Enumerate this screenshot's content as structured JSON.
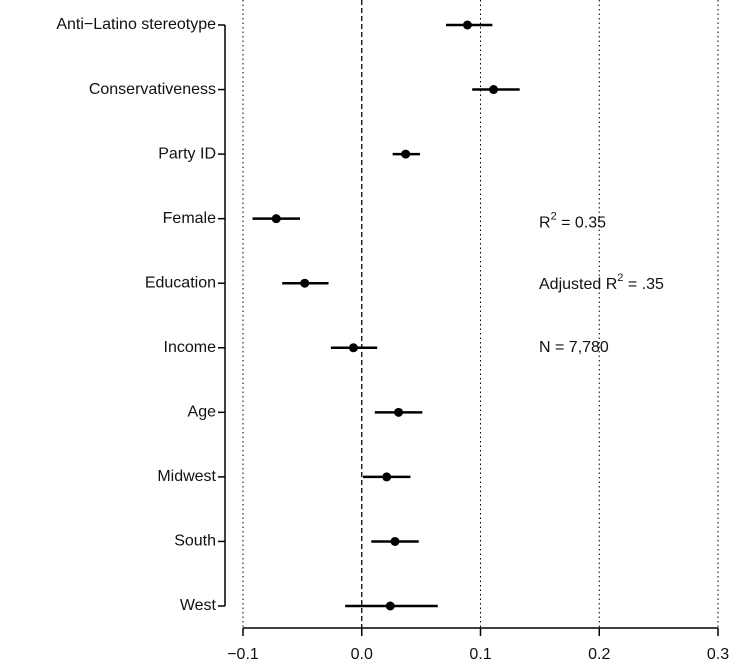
{
  "chart_data": {
    "type": "coefficient",
    "categories": [
      "Anti−Latino stereotype",
      "Conservativeness",
      "Party ID",
      "Female",
      "Education",
      "Income",
      "Age",
      "Midwest",
      "South",
      "West"
    ],
    "values": [
      0.089,
      0.111,
      0.037,
      -0.072,
      -0.048,
      -0.007,
      0.031,
      0.021,
      0.028,
      0.024
    ],
    "ci_lower": [
      0.071,
      0.093,
      0.026,
      -0.092,
      -0.067,
      -0.026,
      0.011,
      0.001,
      0.008,
      -0.014
    ],
    "ci_upper": [
      0.11,
      0.133,
      0.049,
      -0.052,
      -0.028,
      0.013,
      0.051,
      0.041,
      0.048,
      0.064
    ],
    "color": "#000000",
    "xlim": [
      -0.1,
      0.3
    ],
    "xticks": [
      {
        "value": -0.1,
        "label": "−0.1"
      },
      {
        "value": 0,
        "label": "0.0"
      },
      0.1,
      0.2,
      0.3
    ],
    "grid": true,
    "reference_line": 0,
    "annotations": [
      {
        "base": "R",
        "sup": "2",
        "tail": " = 0.35"
      },
      {
        "base": "Adjusted R",
        "sup": "2",
        "tail": " = .35"
      },
      {
        "base": "N = 7,780"
      }
    ]
  }
}
